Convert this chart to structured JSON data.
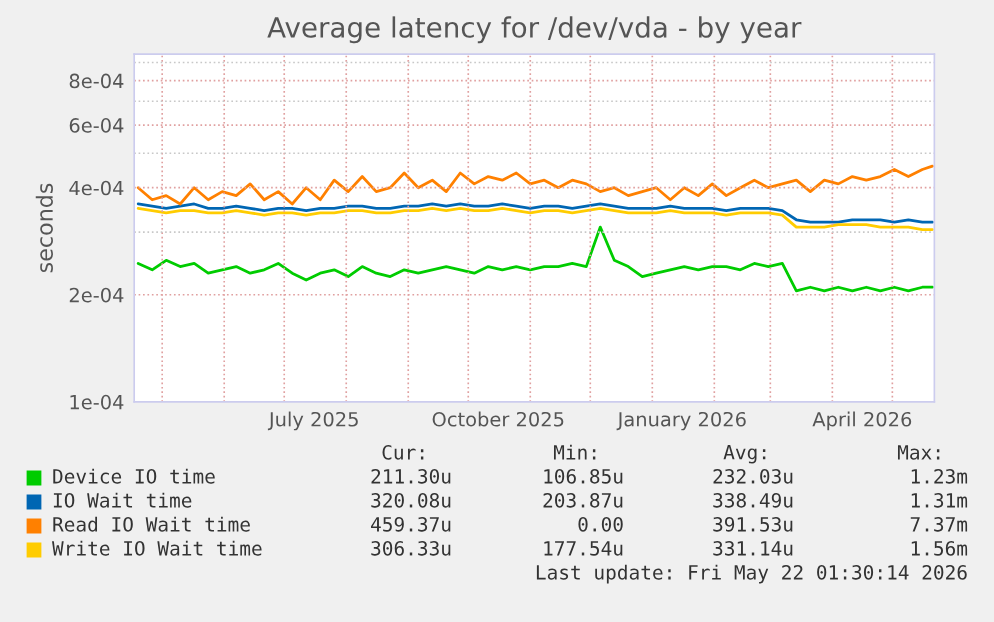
{
  "chart_data": {
    "type": "line",
    "title": "Average latency for /dev/vda - by year",
    "ylabel": "seconds",
    "x": [
      "2025-04-19",
      "2025-04-26",
      "2025-05-03",
      "2025-05-10",
      "2025-05-17",
      "2025-05-24",
      "2025-05-31",
      "2025-06-07",
      "2025-06-14",
      "2025-06-21",
      "2025-06-28",
      "2025-07-05",
      "2025-07-12",
      "2025-07-19",
      "2025-07-26",
      "2025-08-02",
      "2025-08-09",
      "2025-08-16",
      "2025-08-23",
      "2025-08-30",
      "2025-09-06",
      "2025-09-13",
      "2025-09-20",
      "2025-09-27",
      "2025-10-04",
      "2025-10-11",
      "2025-10-18",
      "2025-10-25",
      "2025-11-01",
      "2025-11-08",
      "2025-11-15",
      "2025-11-22",
      "2025-11-29",
      "2025-12-06",
      "2025-12-13",
      "2025-12-20",
      "2025-12-27",
      "2026-01-03",
      "2026-01-10",
      "2026-01-17",
      "2026-01-24",
      "2026-01-31",
      "2026-02-07",
      "2026-02-14",
      "2026-02-21",
      "2026-02-28",
      "2026-03-07",
      "2026-03-14",
      "2026-03-21",
      "2026-03-28",
      "2026-04-04",
      "2026-04-11",
      "2026-04-18",
      "2026-04-25",
      "2026-05-02",
      "2026-05-09",
      "2026-05-16",
      "2026-05-21"
    ],
    "series": [
      {
        "name": "Device IO time",
        "color": "#00cc00",
        "values": [
          0.000245,
          0.000235,
          0.00025,
          0.00024,
          0.000245,
          0.00023,
          0.000235,
          0.00024,
          0.00023,
          0.000235,
          0.000245,
          0.00023,
          0.00022,
          0.00023,
          0.000235,
          0.000225,
          0.00024,
          0.00023,
          0.000225,
          0.000235,
          0.00023,
          0.000235,
          0.00024,
          0.000235,
          0.00023,
          0.00024,
          0.000235,
          0.00024,
          0.000235,
          0.00024,
          0.00024,
          0.000245,
          0.00024,
          0.00031,
          0.00025,
          0.00024,
          0.000225,
          0.00023,
          0.000235,
          0.00024,
          0.000235,
          0.00024,
          0.00024,
          0.000235,
          0.000245,
          0.00024,
          0.000245,
          0.000205,
          0.00021,
          0.000205,
          0.00021,
          0.000205,
          0.00021,
          0.000205,
          0.00021,
          0.000205,
          0.00021,
          0.00021
        ]
      },
      {
        "name": "IO Wait time",
        "color": "#0066b3",
        "values": [
          0.00036,
          0.000355,
          0.00035,
          0.000355,
          0.00036,
          0.00035,
          0.00035,
          0.000355,
          0.00035,
          0.000345,
          0.00035,
          0.00035,
          0.000345,
          0.00035,
          0.00035,
          0.000355,
          0.000355,
          0.00035,
          0.00035,
          0.000355,
          0.000355,
          0.00036,
          0.000355,
          0.00036,
          0.000355,
          0.000355,
          0.00036,
          0.000355,
          0.00035,
          0.000355,
          0.000355,
          0.00035,
          0.000355,
          0.00036,
          0.000355,
          0.00035,
          0.00035,
          0.00035,
          0.000355,
          0.00035,
          0.00035,
          0.00035,
          0.000345,
          0.00035,
          0.00035,
          0.00035,
          0.000345,
          0.000325,
          0.00032,
          0.00032,
          0.00032,
          0.000325,
          0.000325,
          0.000325,
          0.00032,
          0.000325,
          0.00032,
          0.00032
        ]
      },
      {
        "name": "Read IO Wait time",
        "color": "#ff8000",
        "values": [
          0.0004,
          0.00037,
          0.00038,
          0.00036,
          0.0004,
          0.00037,
          0.00039,
          0.00038,
          0.00041,
          0.00037,
          0.00039,
          0.00036,
          0.0004,
          0.00037,
          0.00042,
          0.00039,
          0.00043,
          0.00039,
          0.0004,
          0.00044,
          0.0004,
          0.00042,
          0.00039,
          0.00044,
          0.00041,
          0.00043,
          0.00042,
          0.00044,
          0.00041,
          0.00042,
          0.0004,
          0.00042,
          0.00041,
          0.00039,
          0.0004,
          0.00038,
          0.00039,
          0.0004,
          0.00037,
          0.0004,
          0.00038,
          0.00041,
          0.00038,
          0.0004,
          0.00042,
          0.0004,
          0.00041,
          0.00042,
          0.00039,
          0.00042,
          0.00041,
          0.00043,
          0.00042,
          0.00043,
          0.00045,
          0.00043,
          0.00045,
          0.00046
        ]
      },
      {
        "name": "Write IO Wait time",
        "color": "#ffcc00",
        "values": [
          0.00035,
          0.000345,
          0.00034,
          0.000345,
          0.000345,
          0.00034,
          0.00034,
          0.000345,
          0.00034,
          0.000335,
          0.00034,
          0.00034,
          0.000335,
          0.00034,
          0.00034,
          0.000345,
          0.000345,
          0.00034,
          0.00034,
          0.000345,
          0.000345,
          0.00035,
          0.000345,
          0.00035,
          0.000345,
          0.000345,
          0.00035,
          0.000345,
          0.00034,
          0.000345,
          0.000345,
          0.00034,
          0.000345,
          0.00035,
          0.000345,
          0.00034,
          0.00034,
          0.00034,
          0.000345,
          0.00034,
          0.00034,
          0.00034,
          0.000335,
          0.00034,
          0.00034,
          0.00034,
          0.000335,
          0.00031,
          0.00031,
          0.00031,
          0.000315,
          0.000315,
          0.000315,
          0.00031,
          0.00031,
          0.00031,
          0.000305,
          0.000305
        ]
      }
    ],
    "log": true,
    "ylim": [
      0.0001,
      0.00095
    ],
    "yticks": [
      {
        "value": 0.0001,
        "label": "1e-04"
      },
      {
        "value": 0.0002,
        "label": "2e-04"
      },
      {
        "value": 0.0003,
        "label": null
      },
      {
        "value": 0.0004,
        "label": "4e-04"
      },
      {
        "value": 0.0005,
        "label": null
      },
      {
        "value": 0.0006,
        "label": "6e-04"
      },
      {
        "value": 0.0007,
        "label": null
      },
      {
        "value": 0.0008,
        "label": "8e-04"
      },
      {
        "value": 0.0009,
        "label": null
      }
    ],
    "xlim": [
      "2025-04-17",
      "2026-05-22"
    ],
    "xticks": [
      {
        "value": "2025-05-01",
        "label": null
      },
      {
        "value": "2025-06-01",
        "label": null
      },
      {
        "value": "2025-07-01",
        "label": null
      },
      {
        "value": "2025-07-16",
        "label": "July 2025"
      },
      {
        "value": "2025-08-01",
        "label": null
      },
      {
        "value": "2025-09-01",
        "label": null
      },
      {
        "value": "2025-10-01",
        "label": null
      },
      {
        "value": "2025-10-16",
        "label": "October 2025"
      },
      {
        "value": "2025-11-01",
        "label": null
      },
      {
        "value": "2025-12-01",
        "label": null
      },
      {
        "value": "2026-01-01",
        "label": null
      },
      {
        "value": "2026-01-16",
        "label": "January 2026"
      },
      {
        "value": "2026-02-01",
        "label": null
      },
      {
        "value": "2026-03-01",
        "label": null
      },
      {
        "value": "2026-04-01",
        "label": null
      },
      {
        "value": "2026-04-16",
        "label": "April 2026"
      },
      {
        "value": "2026-05-01",
        "label": null
      }
    ],
    "grid": true,
    "legend": "bottom",
    "annotations": [
      "Cur:",
      "Min:",
      "Avg:",
      "Max:",
      "211.30u",
      "106.85u",
      "232.03u",
      "1.23m",
      "320.08u",
      "203.87u",
      "338.49u",
      "1.31m",
      "459.37u",
      "0.00",
      "391.53u",
      "7.37m",
      "306.33u",
      "177.54u",
      "331.14u",
      "1.56m",
      "Last update: Fri May 22 01:30:14 2026"
    ]
  }
}
